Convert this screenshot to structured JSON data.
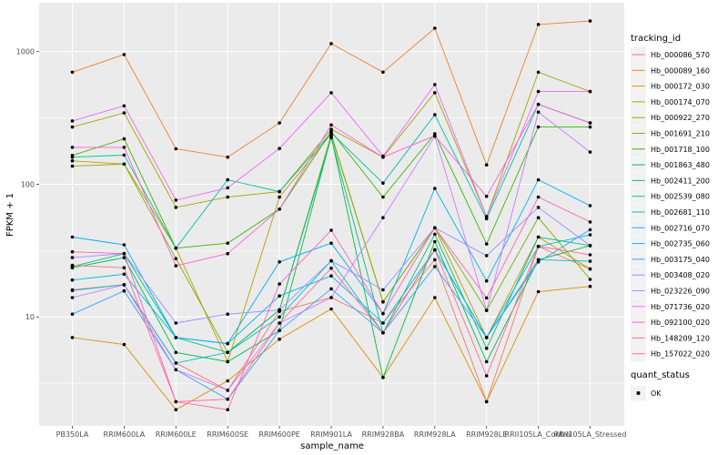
{
  "figure": {
    "y_axis": {
      "label": "FPKM + 1",
      "tick_labels": [
        "10",
        "100",
        "1000"
      ]
    },
    "x_axis": {
      "label": "sample_name"
    },
    "legend": {
      "tracking_title": "tracking_id",
      "quant_title": "quant_status",
      "quant_ok_label": "OK"
    },
    "colors": {
      "panel_bg": "#EBEBEB",
      "grid": "#FFFFFF",
      "axis_text": "#4D4D4D",
      "tick_mark": "#333333",
      "point": "#000000",
      "legend_key_bg": "#F2F2F2"
    }
  },
  "chart_data": {
    "type": "line",
    "title": "",
    "xlabel": "sample_name",
    "ylabel": "FPKM + 1",
    "y_scale": "log10",
    "ylim": [
      1.8,
      1800
    ],
    "yticks": [
      10,
      100,
      1000
    ],
    "minor_tick_exponents": [
      0.5,
      1.5,
      2.5
    ],
    "grid": true,
    "legend_position": "right",
    "point_marker": {
      "shape": "dot",
      "color": "#000000",
      "legend_label": "OK"
    },
    "categories": [
      "PB350LA",
      "RRIM600LA",
      "RRIM600LE",
      "RRIM600SE",
      "RRIM600PE",
      "RRIM901LA",
      "RRIM928BA",
      "RRIM928LA",
      "RRIM928LE",
      "RRII105LA_Control",
      "RRII105LA_Stressed"
    ],
    "series": [
      {
        "name": "Hb_000086_570",
        "color": "#F8766D",
        "values": [
          16,
          17.5,
          4.5,
          2.8,
          11,
          14,
          9,
          27,
          2.3,
          34,
          23
        ]
      },
      {
        "name": "Hb_000089_160",
        "color": "#EA8331",
        "values": [
          700,
          950,
          185,
          160,
          290,
          1150,
          700,
          1500,
          140,
          1600,
          1700
        ]
      },
      {
        "name": "Hb_000172_030",
        "color": "#D89000",
        "values": [
          7,
          6.2,
          2,
          3.3,
          6.8,
          11.5,
          3.5,
          14,
          2.3,
          15.5,
          17
        ]
      },
      {
        "name": "Hb_000174_070",
        "color": "#C09B00",
        "values": [
          150,
          142,
          33,
          4.6,
          80,
          240,
          13,
          47,
          7,
          40,
          23
        ]
      },
      {
        "name": "Hb_000922_270",
        "color": "#A3A500",
        "values": [
          270,
          345,
          67,
          80,
          88,
          260,
          160,
          490,
          57,
          700,
          500
        ]
      },
      {
        "name": "Hb_001691_210",
        "color": "#7CAE00",
        "values": [
          137,
          142,
          27.5,
          5.4,
          11.3,
          235,
          13,
          47,
          11.2,
          56,
          19.2
        ]
      },
      {
        "name": "Hb_001718_100",
        "color": "#39B600",
        "values": [
          165,
          220,
          33,
          36,
          65,
          250,
          80,
          240,
          35.5,
          270,
          270
        ]
      },
      {
        "name": "Hb_001863_480",
        "color": "#00BB4E",
        "values": [
          23.5,
          28,
          5.4,
          4.6,
          7.9,
          230,
          3.5,
          37,
          4.6,
          27,
          34.5
        ]
      },
      {
        "name": "Hb_002411_200",
        "color": "#00BF7D",
        "values": [
          24,
          30,
          7,
          5.4,
          11.3,
          225,
          7.6,
          42,
          5.8,
          40,
          34.5
        ]
      },
      {
        "name": "Hb_002539_080",
        "color": "#00C1A3",
        "values": [
          160,
          166,
          33,
          108,
          88,
          245,
          102,
          334,
          55,
          400,
          290
        ]
      },
      {
        "name": "Hb_002681_110",
        "color": "#00BFC4",
        "values": [
          15.8,
          17.5,
          4.5,
          5.4,
          10,
          26.5,
          7.6,
          32,
          7,
          27,
          26.3
        ]
      },
      {
        "name": "Hb_002716_070",
        "color": "#00BAE0",
        "values": [
          19,
          21,
          7,
          6.3,
          14.4,
          20.4,
          9,
          32,
          7,
          34,
          41.6
        ]
      },
      {
        "name": "Hb_002735_060",
        "color": "#00B0F6",
        "values": [
          40,
          35,
          7,
          6.3,
          26,
          36,
          10.6,
          93,
          18.7,
          108,
          69
        ]
      },
      {
        "name": "Hb_003175_040",
        "color": "#35A2FF",
        "values": [
          10.5,
          15.7,
          4,
          2.4,
          7.9,
          16.3,
          7.6,
          24,
          7,
          26,
          45.5
        ]
      },
      {
        "name": "Hb_003408_020",
        "color": "#9590FF",
        "values": [
          28,
          30,
          9,
          10.5,
          11.3,
          26.5,
          16,
          47,
          29,
          67,
          34.5
        ]
      },
      {
        "name": "Hb_023226_090",
        "color": "#C77CFF",
        "values": [
          14,
          17.5,
          4,
          2.8,
          9,
          14,
          56,
          230,
          11.2,
          350,
          175
        ]
      },
      {
        "name": "Hb_071736_020",
        "color": "#E76BF3",
        "values": [
          300,
          390,
          76,
          94,
          186,
          490,
          163,
          565,
          57,
          500,
          500
        ]
      },
      {
        "name": "Hb_092100_020",
        "color": "#FA62DB",
        "values": [
          190,
          190,
          24.3,
          30,
          65,
          280,
          160,
          232,
          81,
          400,
          290
        ]
      },
      {
        "name": "Hb_148209_120",
        "color": "#FF62BC",
        "values": [
          31,
          30,
          2.3,
          2,
          17.7,
          45,
          10.6,
          47,
          13.9,
          80,
          52
        ]
      },
      {
        "name": "Hb_157022_020",
        "color": "#FF6A98",
        "values": [
          24.5,
          23.5,
          2.3,
          2.4,
          9,
          23.3,
          7.6,
          32,
          3.6,
          34,
          29.4
        ]
      }
    ]
  }
}
